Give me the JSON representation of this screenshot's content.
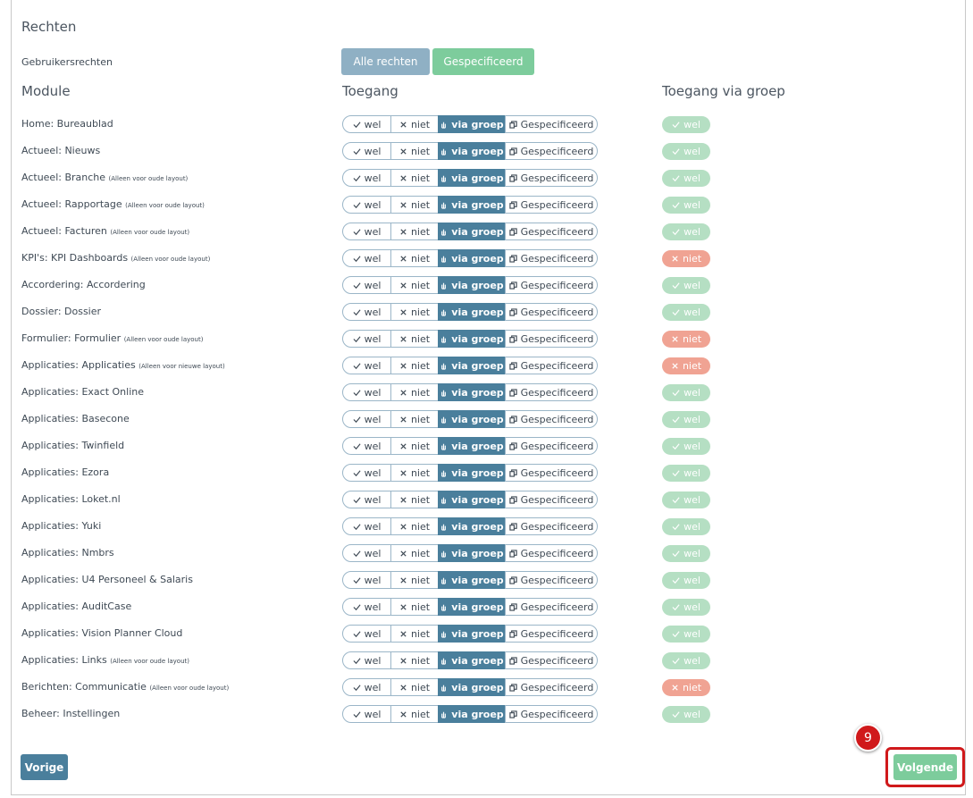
{
  "section_title": "Rechten",
  "user_rights": {
    "label": "Gebruikersrechten",
    "options": [
      "Alle rechten",
      "Gespecificeerd"
    ]
  },
  "columns": [
    "Module",
    "Toegang",
    "Toegang via groep"
  ],
  "access_options": [
    "wel",
    "niet",
    "via groep",
    "Gespecificeerd"
  ],
  "access_selected_index": 2,
  "rows": [
    {
      "module": "Home: Bureaublad",
      "group": "wel"
    },
    {
      "module": "Actueel: Nieuws",
      "group": "wel"
    },
    {
      "module": "Actueel: Branche",
      "note": "(Alleen voor oude layout)",
      "group": "wel"
    },
    {
      "module": "Actueel: Rapportage",
      "note": "(Alleen voor oude layout)",
      "group": "wel"
    },
    {
      "module": "Actueel: Facturen",
      "note": "(Alleen voor oude layout)",
      "group": "wel"
    },
    {
      "module": "KPI's: KPI Dashboards",
      "note": "(Alleen voor oude layout)",
      "group": "niet"
    },
    {
      "module": "Accordering: Accordering",
      "group": "wel"
    },
    {
      "module": "Dossier: Dossier",
      "group": "wel"
    },
    {
      "module": "Formulier: Formulier",
      "note": "(Alleen voor oude layout)",
      "group": "niet"
    },
    {
      "module": "Applicaties: Applicaties",
      "note": "(Alleen voor nieuwe layout)",
      "group": "niet"
    },
    {
      "module": "Applicaties: Exact Online",
      "group": "wel"
    },
    {
      "module": "Applicaties: Basecone",
      "group": "wel"
    },
    {
      "module": "Applicaties: Twinfield",
      "group": "wel"
    },
    {
      "module": "Applicaties: Ezora",
      "group": "wel"
    },
    {
      "module": "Applicaties: Loket.nl",
      "group": "wel"
    },
    {
      "module": "Applicaties: Yuki",
      "group": "wel"
    },
    {
      "module": "Applicaties: Nmbrs",
      "group": "wel"
    },
    {
      "module": "Applicaties: U4 Personeel & Salaris",
      "group": "wel"
    },
    {
      "module": "Applicaties: AuditCase",
      "group": "wel"
    },
    {
      "module": "Applicaties: Vision Planner Cloud",
      "group": "wel"
    },
    {
      "module": "Applicaties: Links",
      "note": "(Alleen voor oude layout)",
      "group": "wel"
    },
    {
      "module": "Berichten: Communicatie",
      "note": "(Alleen voor oude layout)",
      "group": "niet"
    },
    {
      "module": "Beheer: Instellingen",
      "group": "wel"
    }
  ],
  "buttons": {
    "previous": "Vorige",
    "next": "Volgende"
  },
  "step_badge": "9"
}
